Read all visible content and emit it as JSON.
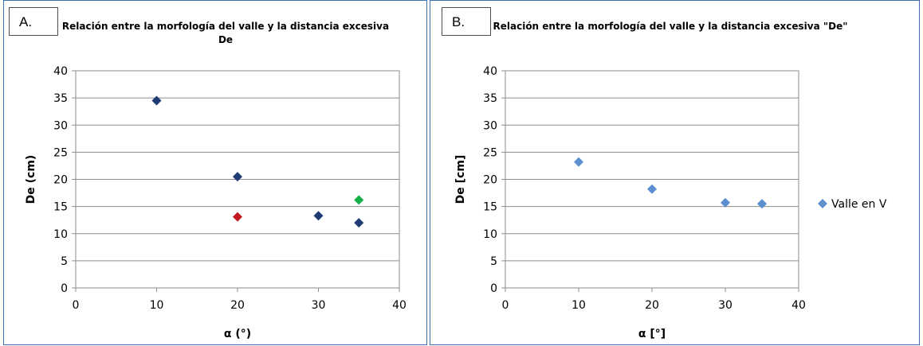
{
  "chart_data": [
    {
      "panel_label": "A.",
      "type": "scatter",
      "title": "Relación entre la morfología del valle y la distancia excesiva De",
      "xlabel": "α (°)",
      "ylabel": "De (cm)",
      "xlim": [
        0,
        40
      ],
      "ylim": [
        0,
        40
      ],
      "x_ticks": [
        "0",
        "10",
        "20",
        "30",
        "40"
      ],
      "y_ticks": [
        "0",
        "5",
        "10",
        "15",
        "20",
        "25",
        "30",
        "35",
        "40"
      ],
      "grid": "horizontal",
      "series": [
        {
          "color": "#1f3b73",
          "points": [
            {
              "x": 10,
              "y": 34.5
            },
            {
              "x": 20,
              "y": 20.5
            },
            {
              "x": 30,
              "y": 13.3
            },
            {
              "x": 35,
              "y": 12
            }
          ]
        },
        {
          "color": "#c0191e",
          "points": [
            {
              "x": 20,
              "y": 13.1
            }
          ]
        },
        {
          "color": "#16b04a",
          "points": [
            {
              "x": 35,
              "y": 16.2
            }
          ]
        }
      ]
    },
    {
      "panel_label": "B.",
      "type": "scatter",
      "title": "Relación entre la morfología del valle y la distancia excesiva \"De\"",
      "xlabel": "α [°]",
      "ylabel": "De [cm]",
      "xlim": [
        0,
        40
      ],
      "ylim": [
        0,
        40
      ],
      "x_ticks": [
        "0",
        "10",
        "20",
        "30",
        "40"
      ],
      "y_ticks": [
        "0",
        "5",
        "10",
        "15",
        "20",
        "25",
        "30",
        "35",
        "40"
      ],
      "grid": "horizontal",
      "legend_position": "right",
      "series": [
        {
          "name": "Valle en V",
          "color": "#5b8fd0",
          "points": [
            {
              "x": 10,
              "y": 23.2
            },
            {
              "x": 20,
              "y": 18.2
            },
            {
              "x": 30,
              "y": 15.7
            },
            {
              "x": 35,
              "y": 15.5
            }
          ]
        }
      ]
    }
  ]
}
